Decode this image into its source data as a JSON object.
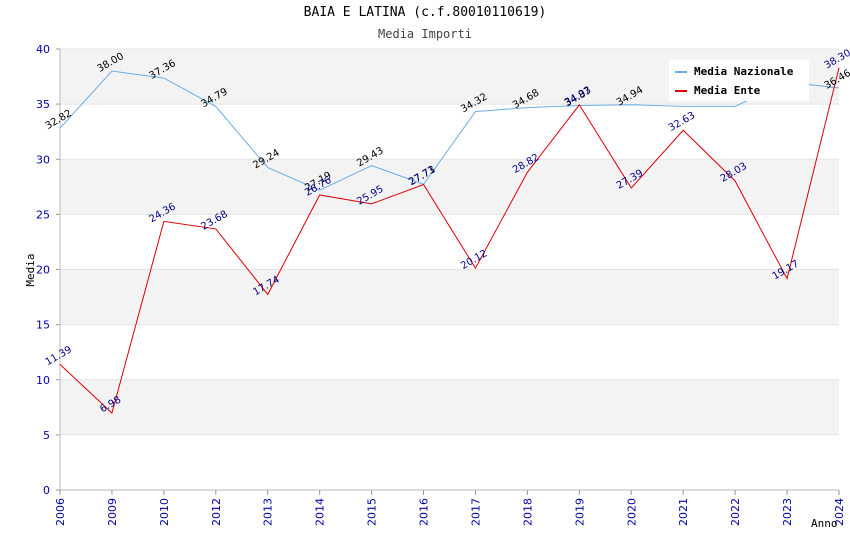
{
  "chart_data": {
    "type": "line",
    "title": "BAIA E LATINA (c.f.80010110619)",
    "subtitle": "Media Importi",
    "xlabel": "Anno",
    "ylabel": "Media",
    "ylim": [
      0,
      40
    ],
    "yticks": [
      "0",
      "5",
      "10",
      "15",
      "20",
      "25",
      "30",
      "35",
      "40"
    ],
    "categories": [
      "2006",
      "2009",
      "2010",
      "2012",
      "2013",
      "2014",
      "2015",
      "2016",
      "2017",
      "2018",
      "2019",
      "2020",
      "2021",
      "2022",
      "2023",
      "2024"
    ],
    "series": [
      {
        "name": "Media Nazionale",
        "color": "#6aaee8",
        "values": [
          32.82,
          38.0,
          37.36,
          34.79,
          29.24,
          27.19,
          29.43,
          27.73,
          34.32,
          34.68,
          34.87,
          34.94,
          34.8,
          34.8,
          37.0,
          36.46
        ],
        "labels": [
          "32.82",
          "38.00",
          "37.36",
          "34.79",
          "29.24",
          "27.19",
          "29.43",
          "27.73",
          "34.32",
          "34.68",
          "34.87",
          "34.94",
          "",
          "",
          "",
          "36.46"
        ]
      },
      {
        "name": "Media Ente",
        "color": "#e00000",
        "values": [
          11.39,
          6.98,
          24.36,
          23.68,
          17.74,
          26.76,
          25.95,
          27.71,
          20.12,
          28.82,
          34.93,
          27.39,
          32.63,
          28.03,
          19.17,
          38.3
        ],
        "labels": [
          "11.39",
          "6.98",
          "24.36",
          "23.68",
          "17.74",
          "26.76",
          "25.95",
          "27.71",
          "20.12",
          "28.82",
          "34.93",
          "27.39",
          "32.63",
          "28.03",
          "19.17",
          "38.30"
        ]
      }
    ],
    "legend_position": "top-right",
    "grid": true
  }
}
